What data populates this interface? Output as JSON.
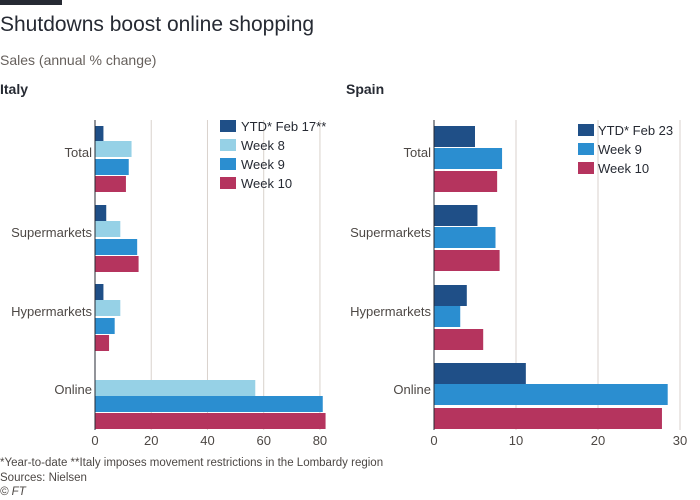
{
  "title": "Shutdowns boost online shopping",
  "subtitle": "Sales (annual % change)",
  "footnote": "*Year-to-date   **Italy imposes movement restrictions in the Lombardy region",
  "sources": "Sources: Nielsen",
  "credit": "© FT",
  "colors": {
    "grid": "#d9d2cc",
    "axis": "#262a33",
    "text": "#4d4845"
  },
  "chart_data": [
    {
      "type": "bar",
      "orientation": "horizontal",
      "title": "Italy",
      "categories": [
        "Total",
        "Supermarkets",
        "Hypermarkets",
        "Online"
      ],
      "xlim": [
        0,
        85
      ],
      "xticks": [
        0,
        20,
        40,
        60,
        80
      ],
      "grid": true,
      "legend_position": "top-right",
      "series": [
        {
          "name": "YTD* Feb 17**",
          "color": "#1f4f87",
          "values": [
            3,
            4,
            3,
            null
          ]
        },
        {
          "name": "Week 8",
          "color": "#96d1e6",
          "values": [
            13,
            9,
            9,
            57
          ]
        },
        {
          "name": "Week 9",
          "color": "#2b8ed0",
          "values": [
            12,
            15,
            7,
            81
          ]
        },
        {
          "name": "Week 10",
          "color": "#b5345e",
          "values": [
            11,
            15.5,
            5,
            82
          ]
        }
      ]
    },
    {
      "type": "bar",
      "orientation": "horizontal",
      "title": "Spain",
      "categories": [
        "Total",
        "Supermarkets",
        "Hypermarkets",
        "Online"
      ],
      "xlim": [
        0,
        30
      ],
      "xticks": [
        0,
        10,
        20,
        30
      ],
      "grid": true,
      "legend_position": "top-right",
      "series": [
        {
          "name": "YTD* Feb 23",
          "color": "#1f4f87",
          "values": [
            5,
            5.3,
            4,
            11.2
          ]
        },
        {
          "name": "Week 9",
          "color": "#2b8ed0",
          "values": [
            8.3,
            7.5,
            3.2,
            28.5
          ]
        },
        {
          "name": "Week 10",
          "color": "#b5345e",
          "values": [
            7.7,
            8,
            6,
            27.8
          ]
        }
      ]
    }
  ]
}
